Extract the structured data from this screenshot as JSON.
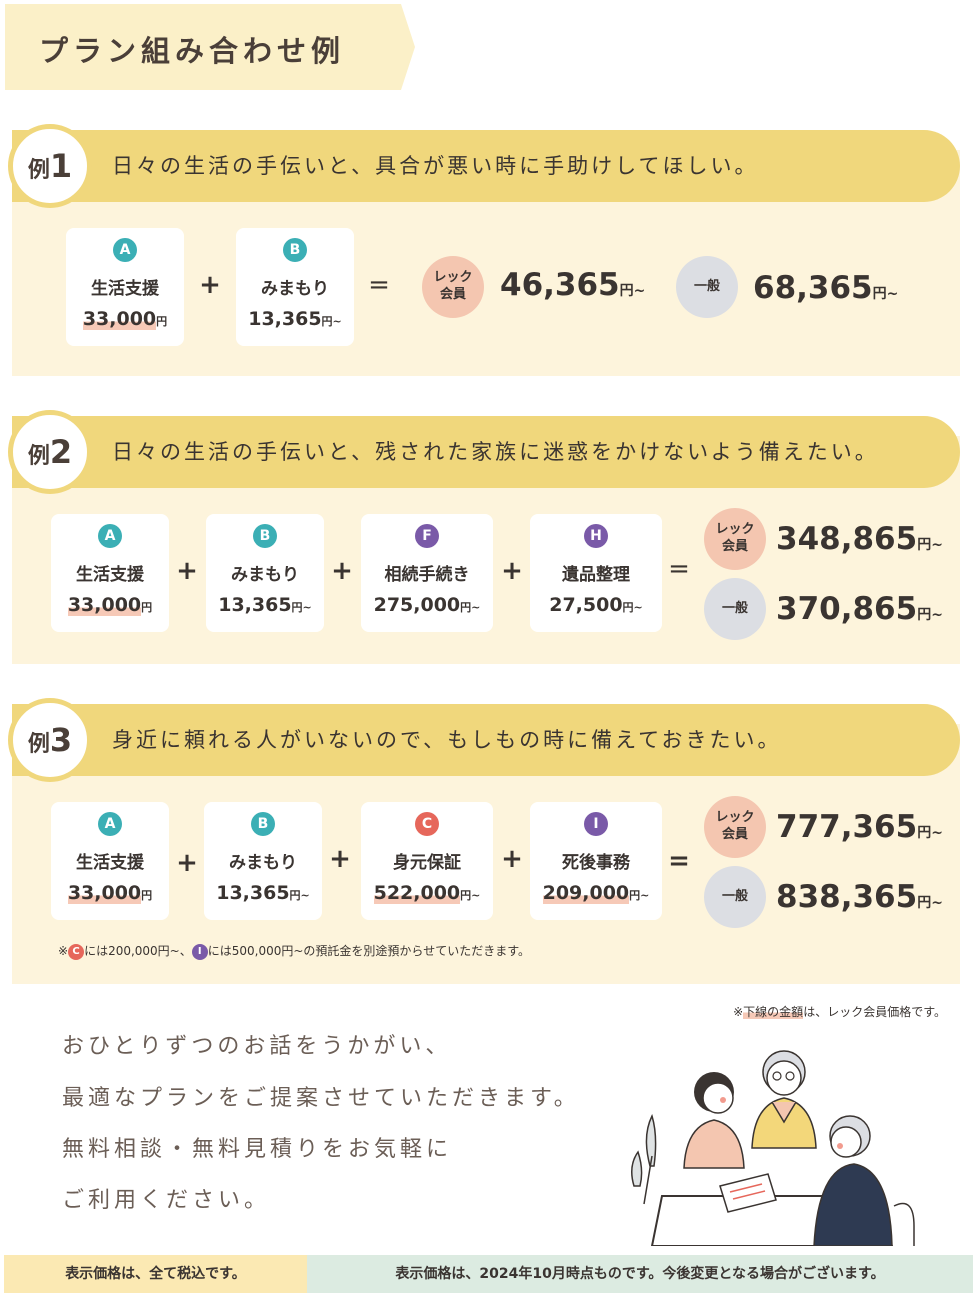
{
  "title": "プラン組み合わせ例",
  "colors": {
    "badge_teal": "#3bafb5",
    "badge_red": "#e6675b",
    "badge_purple": "#7a5aa8",
    "example_bar": "#f0d77c",
    "section_bg": "#fdf4dc",
    "member_pill": "#f4c6b0",
    "general_pill": "#dcdee3",
    "underline": "#f6c9b7"
  },
  "symbols": {
    "plus": "+",
    "equals": "="
  },
  "examples": [
    {
      "label": "例",
      "number": "1",
      "text": "日々の生活の手伝いと、具合が悪い時に手助けしてほしい。",
      "items": [
        {
          "badge": "A",
          "name": "生活支援",
          "price": "33,000",
          "unit": "円"
        },
        {
          "badge": "B",
          "name": "みまもり",
          "price": "13,365",
          "unit": "円~"
        }
      ],
      "member_label_1": "レック",
      "member_label_2": "会員",
      "member_price": "46,365",
      "general_label": "一般",
      "general_price": "68,365",
      "total_unit": "円~"
    },
    {
      "label": "例",
      "number": "2",
      "text": "日々の生活の手伝いと、残された家族に迷惑をかけないよう備えたい。",
      "items": [
        {
          "badge": "A",
          "name": "生活支援",
          "price": "33,000",
          "unit": "円"
        },
        {
          "badge": "B",
          "name": "みまもり",
          "price": "13,365",
          "unit": "円~"
        },
        {
          "badge": "F",
          "name": "相続手続き",
          "price": "275,000",
          "unit": "円~"
        },
        {
          "badge": "H",
          "name": "遺品整理",
          "price": "27,500",
          "unit": "円~"
        }
      ],
      "member_label_1": "レック",
      "member_label_2": "会員",
      "member_price": "348,865",
      "general_label": "一般",
      "general_price": "370,865",
      "total_unit": "円~"
    },
    {
      "label": "例",
      "number": "3",
      "text": "身近に頼れる人がいないので、もしもの時に備えておきたい。",
      "items": [
        {
          "badge": "A",
          "name": "生活支援",
          "price": "33,000",
          "unit": "円"
        },
        {
          "badge": "B",
          "name": "みまもり",
          "price": "13,365",
          "unit": "円~"
        },
        {
          "badge": "C",
          "name": "身元保証",
          "price": "522,000",
          "unit": "円~"
        },
        {
          "badge": "I",
          "name": "死後事務",
          "price": "209,000",
          "unit": "円~"
        }
      ],
      "member_label_1": "レック",
      "member_label_2": "会員",
      "member_price": "777,365",
      "general_label": "一般",
      "general_price": "838,365",
      "total_unit": "円~"
    }
  ],
  "deposit_note": {
    "prefix": "※",
    "badge_c": "C",
    "part1": "には200,000円~、",
    "badge_i": "I",
    "part2": "には500,000円~の預託金を別途預からせていただきます。"
  },
  "underline_note": {
    "prefix": "※",
    "underlined": "下線の金額",
    "rest": "は、レック会員価格です。"
  },
  "message_lines": [
    "おひとりずつのお話をうかがい、",
    "最適なプランをご提案させていただきます。",
    "無料相談・無料見積りをお気軽に",
    "ご利用ください。"
  ],
  "footer": {
    "left": "表示価格は、全て税込です。",
    "right": "表示価格は、2024年10月時点ものです。今後変更となる場合がございます。"
  }
}
